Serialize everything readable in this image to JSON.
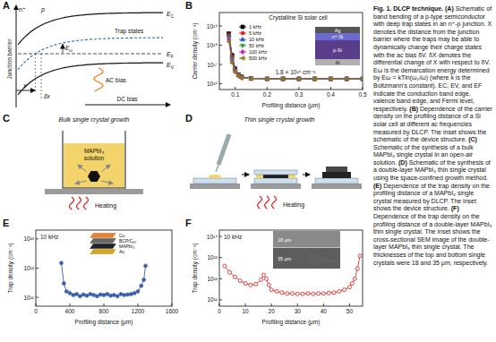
{
  "figure": {
    "A": {
      "letter": "A",
      "n_plus": "n⁺",
      "p": "p",
      "junction_barrier": "Junction barrier",
      "ec": {
        "main": "E",
        "sub": "C"
      },
      "ef": {
        "main": "E",
        "sub": "F"
      },
      "ev": {
        "main": "E",
        "sub": "V"
      },
      "ew": {
        "main": "E",
        "sub": "ω"
      },
      "trap_states": "Trap states",
      "x": "x",
      "dx": "δx",
      "ac_bias": "AC bias",
      "dc_bias": "DC bias"
    },
    "C": {
      "letter": "C",
      "title": "Bulk single crystal growth",
      "solution": [
        "MAPbI₃",
        "solution"
      ],
      "heating": "Heating"
    },
    "D": {
      "letter": "D",
      "title": "Thin single crystal growth",
      "heating": "Heating"
    }
  },
  "chart_data": [
    {
      "panel": "B",
      "type": "line",
      "title": "Crystalline Si solar cell",
      "x_label": "Profiling distance (μm)",
      "y_label": "Carrier density (cm⁻³)",
      "annotation": "1.8 × 10¹⁶ cm⁻³",
      "inset": [
        "Ag",
        "n⁺-Si",
        "p-Si",
        "Al"
      ],
      "x": [
        0.08,
        0.09,
        0.1,
        0.11,
        0.12,
        0.15,
        0.2,
        0.25,
        0.3,
        0.35,
        0.4,
        0.45,
        0.5
      ],
      "series": [
        {
          "name": "1 kHz",
          "color": "#000000",
          "marker": "square",
          "values": [
            4e+18,
            3e+17,
            6e+16,
            3e+16,
            2.3e+16,
            1.9e+16,
            1.8e+16,
            1.8e+16,
            1.8e+16,
            1.8e+16,
            1.8e+16,
            1.8e+16,
            1.8e+16
          ]
        },
        {
          "name": "5 kHz",
          "color": "#e41a1c",
          "marker": "circle",
          "values": [
            3.5e+18,
            2.6e+17,
            5.5e+16,
            2.9e+16,
            2.2e+16,
            1.9e+16,
            1.8e+16,
            1.8e+16,
            1.8e+16,
            1.8e+16,
            1.8e+16,
            1.8e+16,
            1.8e+16
          ]
        },
        {
          "name": "10 kHz",
          "color": "#1f4fd8",
          "marker": "triangle",
          "values": [
            3e+18,
            2.2e+17,
            5e+16,
            2.8e+16,
            2.2e+16,
            1.9e+16,
            1.8e+16,
            1.8e+16,
            1.8e+16,
            1.8e+16,
            1.8e+16,
            1.8e+16,
            1.8e+16
          ]
        },
        {
          "name": "50 kHz",
          "color": "#2ca02c",
          "marker": "down-triangle",
          "values": [
            2.5e+18,
            1.8e+17,
            4.6e+16,
            2.7e+16,
            2.1e+16,
            1.9e+16,
            1.8e+16,
            1.8e+16,
            1.8e+16,
            1.8e+16,
            1.8e+16,
            1.8e+16,
            1.8e+16
          ]
        },
        {
          "name": "100 kHz",
          "color": "#c020c0",
          "marker": "diamond",
          "values": [
            2e+18,
            1.5e+17,
            4.2e+16,
            2.6e+16,
            2.1e+16,
            1.85e+16,
            1.8e+16,
            1.8e+16,
            1.8e+16,
            1.8e+16,
            1.8e+16,
            1.8e+16,
            1.8e+16
          ]
        },
        {
          "name": "500 kHz",
          "color": "#8b7d1a",
          "marker": "left-triangle",
          "values": [
            1.5e+18,
            1.2e+17,
            4e+16,
            2.5e+16,
            2e+16,
            1.85e+16,
            1.8e+16,
            1.8e+16,
            1.8e+16,
            1.8e+16,
            1.8e+16,
            1.8e+16,
            1.8e+16
          ]
        }
      ],
      "xlim": [
        0.05,
        0.5
      ],
      "xticks": [
        0.1,
        0.2,
        0.3,
        0.4,
        0.5
      ],
      "ylim": [
        5000000000000000.0,
        5e+19
      ],
      "yticks": [
        {
          "value": 1e+16,
          "label": "10¹⁶"
        },
        {
          "value": 1e+17,
          "label": "10¹⁷"
        },
        {
          "value": 1e+18,
          "label": "10¹⁸"
        },
        {
          "value": 1e+19,
          "label": "10¹⁹"
        }
      ],
      "log": "y",
      "legend": "upper left"
    },
    {
      "panel": "E",
      "type": "line",
      "annotation": "10 kHz",
      "x_label": "Profiling distance (μm)",
      "y_label": "Trap density (cm⁻³)",
      "inset": [
        "Cu",
        "BCP/C₆₀",
        "MAPbI₃",
        "Au"
      ],
      "x": [
        300,
        330,
        360,
        400,
        440,
        480,
        520,
        560,
        600,
        640,
        680,
        720,
        760,
        800,
        840,
        880,
        920,
        960,
        1000,
        1040,
        1080,
        1120,
        1160,
        1200,
        1240,
        1270,
        1290
      ],
      "series": [
        {
          "color": "#3a5fa8",
          "marker": "circle",
          "values": [
            1500000000000.0,
            300000000000.0,
            160000000000.0,
            140000000000.0,
            120000000000.0,
            130000000000.0,
            110000000000.0,
            125000000000.0,
            115000000000.0,
            130000000000.0,
            120000000000.0,
            110000000000.0,
            125000000000.0,
            120000000000.0,
            130000000000.0,
            115000000000.0,
            120000000000.0,
            110000000000.0,
            130000000000.0,
            120000000000.0,
            125000000000.0,
            130000000000.0,
            140000000000.0,
            160000000000.0,
            250000000000.0,
            400000000000.0,
            1200000000000.0
          ]
        }
      ],
      "xlim": [
        0,
        1600
      ],
      "xticks": [
        0,
        400,
        800,
        1200,
        1600
      ],
      "ylim": [
        50000000000.0,
        20000000000000.0
      ],
      "yticks": [
        {
          "value": 100000000000.0,
          "label": "10¹¹"
        },
        {
          "value": 1000000000000.0,
          "label": "10¹²"
        },
        {
          "value": 10000000000000.0,
          "label": "10¹³"
        }
      ],
      "log": "y"
    },
    {
      "panel": "F",
      "type": "line",
      "annotation": "10 kHz",
      "x_label": "Profiling distance (μm)",
      "y_label": "Trap density (cm⁻³)",
      "inset": [
        "18 μm",
        "35 μm"
      ],
      "x": [
        2,
        4,
        6,
        8,
        10,
        12,
        14,
        16,
        17,
        18,
        19,
        20,
        22,
        24,
        26,
        28,
        30,
        32,
        34,
        36,
        38,
        40,
        42,
        44,
        46,
        48,
        50,
        51,
        52,
        53,
        54
      ],
      "series": [
        {
          "color": "#e0302a",
          "marker": "open-circle",
          "values": [
            4000000000000.0,
            2000000000000.0,
            1200000000000.0,
            800000000000.0,
            600000000000.0,
            500000000000.0,
            550000000000.0,
            900000000000.0,
            1500000000000.0,
            1000000000000.0,
            500000000000.0,
            300000000000.0,
            250000000000.0,
            220000000000.0,
            200000000000.0,
            200000000000.0,
            190000000000.0,
            190000000000.0,
            200000000000.0,
            190000000000.0,
            200000000000.0,
            200000000000.0,
            210000000000.0,
            220000000000.0,
            250000000000.0,
            300000000000.0,
            400000000000.0,
            600000000000.0,
            1000000000000.0,
            3000000000000.0,
            12000000000000.0
          ]
        }
      ],
      "xlim": [
        0,
        55
      ],
      "xticks": [
        0,
        10,
        20,
        30,
        40,
        50
      ],
      "ylim": [
        50000000000.0,
        200000000000000.0
      ],
      "yticks": [
        {
          "value": 100000000000.0,
          "label": "10¹¹"
        },
        {
          "value": 1000000000000.0,
          "label": "10¹²"
        },
        {
          "value": 10000000000000.0,
          "label": "10¹³"
        },
        {
          "value": 100000000000000.0,
          "label": "10¹⁴"
        }
      ],
      "log": "y"
    }
  ],
  "caption": {
    "heading": "Fig. 1. DLCP technique.",
    "parts": [
      {
        "label": "(A)",
        "text": "Schematic of band bending of a p-type semiconductor with deep trap states in an n⁺-p junction. X denotes the distance from the junction barrier where the traps may be able to dynamically change their charge states with the ac bias δV. δX denotes the differential change of X with respect to δV. Eω is the demarcation energy determined by Eω = kTln(ω₀/ω) (where k is the Boltzmann's constant). EC, EV, and EF indicate the conduction band edge, valence band edge, and Fermi level, respectively."
      },
      {
        "label": "(B)",
        "text": "Dependence of the carrier density on the profiling distance of a Si solar cell at different ac frequencies measured by DLCP. The inset shows the schematic of the device structure."
      },
      {
        "label": "(C)",
        "text": "Schematic of the synthesis of a bulk MAPbI₃ single crystal in an open-air solution."
      },
      {
        "label": "(D)",
        "text": "Schematic of the synthesis of a double-layer MAPbI₃ thin single crystal using the space-confined growth method."
      },
      {
        "label": "(E)",
        "text": "Dependence of the trap density on the profiling distance of a MAPbI₃ single crystal measured by DLCP. The inset shows the device structure."
      },
      {
        "label": "(F)",
        "text": "Dependence of the trap density on the profiling distance of a double-layer MAPbI₃ thin single crystal. The inset shows the cross-sectional SEM image of the double-layer MAPbI₃ thin single crystal. The thicknesses of the top and bottom single crystals were 18 and 35 μm, respectively."
      }
    ]
  }
}
